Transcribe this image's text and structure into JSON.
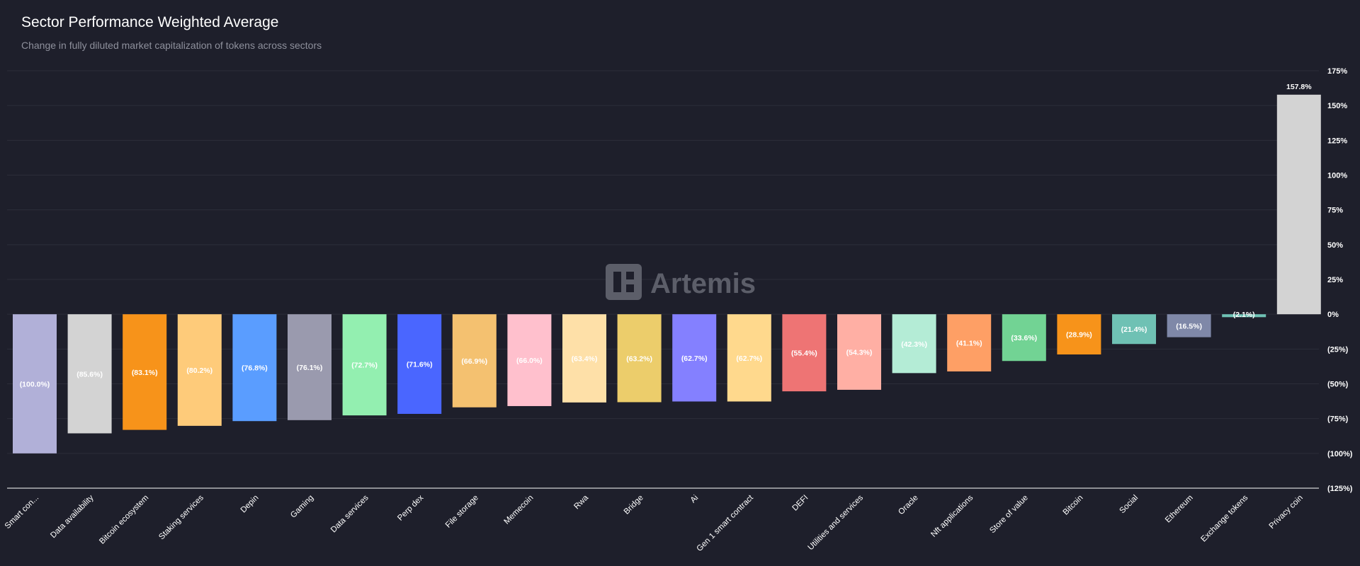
{
  "header": {
    "title": "Sector Performance Weighted Average",
    "subtitle": "Change in fully diluted market capitalization of tokens across sectors"
  },
  "watermark": {
    "text": "Artemis"
  },
  "colors": {
    "background": "#1e1f2b",
    "grid": "#2c2e3a",
    "baseline": "#ffffff"
  },
  "chart_data": {
    "type": "bar",
    "title": "Sector Performance Weighted Average",
    "subtitle": "Change in fully diluted market capitalization of tokens across sectors",
    "xlabel": "",
    "ylabel": "",
    "ylim": [
      -125,
      175
    ],
    "yticks": [
      175,
      150,
      125,
      100,
      75,
      50,
      25,
      0,
      -25,
      -50,
      -75,
      -100,
      -125
    ],
    "ytick_labels": [
      "175%",
      "150%",
      "125%",
      "100%",
      "75%",
      "50%",
      "25%",
      "0%",
      "(25%)",
      "(50%)",
      "(75%)",
      "(100%)",
      "(125%)"
    ],
    "grid": true,
    "y_axis_position": "right",
    "categories": [
      "Smart con...",
      "Data availability",
      "Bitcoin ecosystem",
      "Staking services",
      "Depin",
      "Gaming",
      "Data services",
      "Perp dex",
      "File storage",
      "Memecoin",
      "Rwa",
      "Bridge",
      "Ai",
      "Gen 1 smart contract",
      "DEFI",
      "Utilities and services",
      "Oracle",
      "Nft applications",
      "Store of value",
      "Bitcoin",
      "Social",
      "Ethereum",
      "Exchange tokens",
      "Privacy coin"
    ],
    "values": [
      -100.0,
      -85.6,
      -83.1,
      -80.2,
      -76.8,
      -76.1,
      -72.7,
      -71.6,
      -66.9,
      -66.0,
      -63.4,
      -63.2,
      -62.7,
      -62.7,
      -55.4,
      -54.3,
      -42.3,
      -41.1,
      -33.6,
      -28.9,
      -21.4,
      -16.5,
      -2.1,
      157.8
    ],
    "data_labels": [
      "(100.0%)",
      "(85.6%)",
      "(83.1%)",
      "(80.2%)",
      "(76.8%)",
      "(76.1%)",
      "(72.7%)",
      "(71.6%)",
      "(66.9%)",
      "(66.0%)",
      "(63.4%)",
      "(63.2%)",
      "(62.7%)",
      "(62.7%)",
      "(55.4%)",
      "(54.3%)",
      "(42.3%)",
      "(41.1%)",
      "(33.6%)",
      "(28.9%)",
      "(21.4%)",
      "(16.5%)",
      "(2.1%)",
      "157.8%"
    ],
    "bar_colors": [
      "#b1b0d8",
      "#d3d3d3",
      "#f7931a",
      "#fecb7a",
      "#5a9dff",
      "#9a9aae",
      "#93efb0",
      "#4a66ff",
      "#f4c170",
      "#ffc0cd",
      "#fee0a8",
      "#eccd6b",
      "#8480ff",
      "#ffd98d",
      "#ee7474",
      "#ffafa4",
      "#b4ecd6",
      "#fe9f65",
      "#72d394",
      "#f7931a",
      "#6fc1b4",
      "#7f88a8",
      "#6fc1b4",
      "#d3d3d3"
    ]
  }
}
